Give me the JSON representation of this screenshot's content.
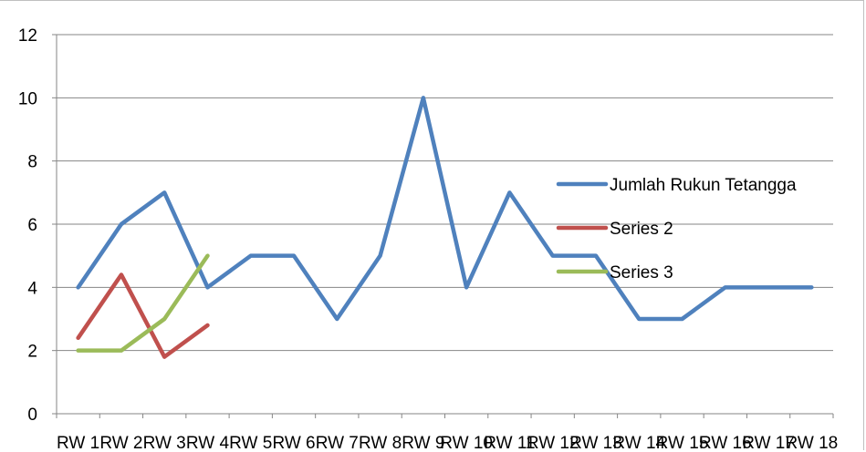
{
  "chart_data": {
    "type": "line",
    "title": "",
    "xlabel": "",
    "ylabel": "",
    "ylim": [
      0,
      12
    ],
    "yticks": [
      0,
      2,
      4,
      6,
      8,
      10,
      12
    ],
    "grid": true,
    "legend_position": "right",
    "categories": [
      "RW 1",
      "RW 2",
      "RW 3",
      "RW 4",
      "RW 5",
      "RW 6",
      "RW 7",
      "RW 8",
      "RW 9",
      "RW 10",
      "RW 11",
      "RW 12",
      "RW 13",
      "RW 14",
      "RW 15",
      "RW 16",
      "RW 17",
      "RW 18"
    ],
    "series": [
      {
        "name": "Jumlah Rukun Tetangga",
        "color": "#4f81bd",
        "values": [
          4,
          6,
          7,
          4,
          5,
          5,
          3,
          5,
          10,
          4,
          7,
          5,
          5,
          3,
          3,
          4,
          4,
          4
        ]
      },
      {
        "name": "Series 2",
        "color": "#c0504d",
        "values": [
          2.4,
          4.4,
          1.8,
          2.8,
          null,
          null,
          null,
          null,
          null,
          null,
          null,
          null,
          null,
          null,
          null,
          null,
          null,
          null
        ]
      },
      {
        "name": "Series 3",
        "color": "#9bbb59",
        "values": [
          2,
          2,
          3,
          5,
          null,
          null,
          null,
          null,
          null,
          null,
          null,
          null,
          null,
          null,
          null,
          null,
          null,
          null
        ]
      }
    ]
  }
}
